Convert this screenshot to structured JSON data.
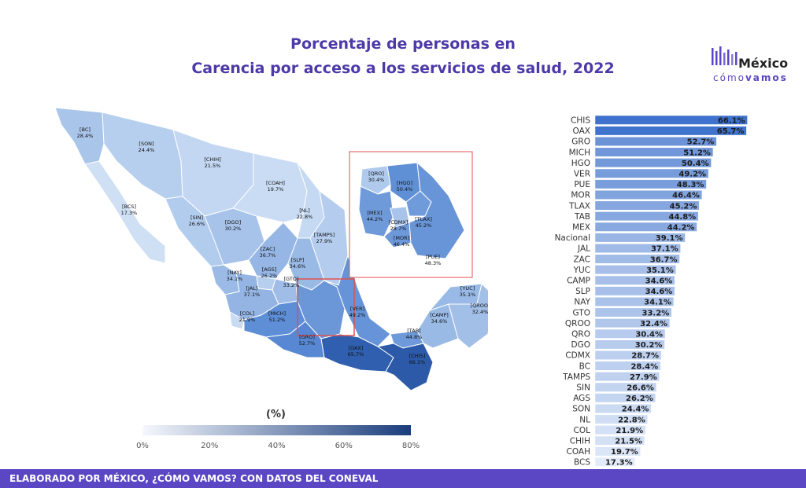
{
  "title_line1": "Porcentaje de personas en",
  "title_line2": "Carencia por acceso a los servicios de salud, 2022",
  "logo": {
    "main": "México",
    "sub_light": "cómo",
    "sub_bold": "vamos",
    "icon": "bars-logo-icon"
  },
  "legend": {
    "title": "(%)",
    "ticks": [
      "0%",
      "20%",
      "40%",
      "60%",
      "80%"
    ],
    "min": 0,
    "max": 80
  },
  "footer": "ELABORADO POR MÉXICO, ¿CÓMO VAMOS? CON DATOS DEL CONEVAL",
  "colors": {
    "title": "#4d3aa8",
    "footer": "#5b46c4",
    "scale_low": "#f5f8fd",
    "scale_high": "#1a3d7c",
    "inset_frame": "#e05050"
  },
  "chart_data": {
    "type": "bar",
    "orientation": "horizontal",
    "categories": [
      "CHIS",
      "OAX",
      "GRO",
      "MICH",
      "HGO",
      "VER",
      "PUE",
      "MOR",
      "TLAX",
      "TAB",
      "MEX",
      "Nacional",
      "JAL",
      "ZAC",
      "YUC",
      "CAMP",
      "SLP",
      "NAY",
      "GTO",
      "QROO",
      "QRO",
      "DGO",
      "CDMX",
      "BC",
      "TAMPS",
      "SIN",
      "AGS",
      "SON",
      "NL",
      "COL",
      "CHIH",
      "COAH",
      "BCS"
    ],
    "values": [
      66.1,
      65.7,
      52.7,
      51.2,
      50.4,
      49.2,
      48.3,
      46.4,
      45.2,
      44.8,
      44.2,
      39.1,
      37.1,
      36.7,
      35.1,
      34.6,
      34.6,
      34.1,
      33.2,
      32.4,
      30.4,
      30.2,
      28.7,
      28.4,
      27.9,
      26.6,
      26.2,
      24.4,
      22.8,
      21.9,
      21.5,
      19.7,
      17.3
    ],
    "value_labels": [
      "66.1%",
      "65.7%",
      "52.7%",
      "51.2%",
      "50.4%",
      "49.2%",
      "48.3%",
      "46.4%",
      "45.2%",
      "44.8%",
      "44.2%",
      "39.1%",
      "37.1%",
      "36.7%",
      "35.1%",
      "34.6%",
      "34.6%",
      "34.1%",
      "33.2%",
      "32.4%",
      "30.4%",
      "30.2%",
      "28.7%",
      "28.4%",
      "27.9%",
      "26.6%",
      "26.2%",
      "24.4%",
      "22.8%",
      "21.9%",
      "21.5%",
      "19.7%",
      "17.3%"
    ],
    "xlim": [
      0,
      70
    ]
  },
  "map_labels": [
    {
      "code": "[BC]",
      "value": "28.4%"
    },
    {
      "code": "[SON]",
      "value": "24.4%"
    },
    {
      "code": "[CHIH]",
      "value": "21.5%"
    },
    {
      "code": "[COAH]",
      "value": "19.7%"
    },
    {
      "code": "[BCS]",
      "value": "17.3%"
    },
    {
      "code": "[SIN]",
      "value": "26.6%"
    },
    {
      "code": "[DGO]",
      "value": "30.2%"
    },
    {
      "code": "[NL]",
      "value": "22.8%"
    },
    {
      "code": "[TAMPS]",
      "value": "27.9%"
    },
    {
      "code": "[ZAC]",
      "value": "36.7%"
    },
    {
      "code": "[NAY]",
      "value": "34.1%"
    },
    {
      "code": "[AGS]",
      "value": "26.2%"
    },
    {
      "code": "[SLP]",
      "value": "34.6%"
    },
    {
      "code": "[JAL]",
      "value": "37.1%"
    },
    {
      "code": "[GTO]",
      "value": "33.2%"
    },
    {
      "code": "[COL]",
      "value": "21.9%"
    },
    {
      "code": "[MICH]",
      "value": "51.2%"
    },
    {
      "code": "[VER]",
      "value": "49.2%"
    },
    {
      "code": "[GRO]",
      "value": "52.7%"
    },
    {
      "code": "[OAX]",
      "value": "65.7%"
    },
    {
      "code": "[TAB]",
      "value": "44.8%"
    },
    {
      "code": "[CHIS]",
      "value": "66.1%"
    },
    {
      "code": "[CAMP]",
      "value": "34.6%"
    },
    {
      "code": "[YUC]",
      "value": "35.1%"
    },
    {
      "code": "[QROO]",
      "value": "32.4%"
    }
  ],
  "inset_labels": [
    {
      "code": "[QRO]",
      "value": "30.4%"
    },
    {
      "code": "[HGO]",
      "value": "50.4%"
    },
    {
      "code": "[MEX]",
      "value": "44.2%"
    },
    {
      "code": "[TLAX]",
      "value": "45.2%"
    },
    {
      "code": "[CDMX]",
      "value": "28.7%"
    },
    {
      "code": "[MOR]",
      "value": "46.4%"
    },
    {
      "code": "[PUE]",
      "value": "48.3%"
    }
  ]
}
